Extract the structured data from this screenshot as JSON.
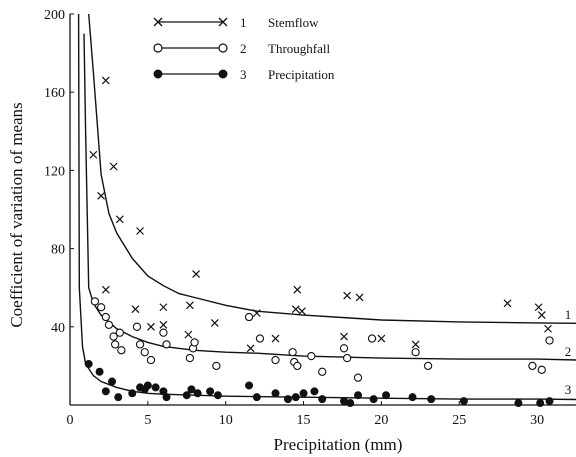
{
  "chart_data": {
    "type": "scatter",
    "title": "",
    "xlabel": "Precipitation (mm)",
    "ylabel": "Coefficient of variation of means",
    "xlim": [
      0,
      32.5
    ],
    "ylim": [
      0,
      200
    ],
    "x_ticks": [
      0,
      5,
      10,
      15,
      20,
      25,
      30
    ],
    "y_ticks": [
      40,
      80,
      120,
      160,
      200
    ],
    "grid": false,
    "legend_position": "top-center",
    "colors": {
      "ink": "#111111",
      "background": "#ffffff"
    },
    "series": [
      {
        "name": "Stemflow",
        "legend_number": "1",
        "curve_label": "1",
        "marker": "x",
        "fitted_curve": [
          [
            1.2,
            200
          ],
          [
            1.5,
            170
          ],
          [
            2.0,
            118
          ],
          [
            2.5,
            98
          ],
          [
            3.0,
            88
          ],
          [
            4.0,
            75
          ],
          [
            5.0,
            66
          ],
          [
            6.0,
            61
          ],
          [
            7.0,
            57
          ],
          [
            8.0,
            55
          ],
          [
            10.0,
            51
          ],
          [
            12.0,
            48
          ],
          [
            15.0,
            46
          ],
          [
            18.0,
            44.5
          ],
          [
            20.0,
            43.5
          ],
          [
            25.0,
            42.5
          ],
          [
            30.0,
            42
          ],
          [
            32.5,
            41.8
          ]
        ],
        "points": [
          [
            1.5,
            128
          ],
          [
            2.0,
            107
          ],
          [
            2.3,
            166
          ],
          [
            2.8,
            122
          ],
          [
            3.2,
            95
          ],
          [
            4.5,
            89
          ],
          [
            8.1,
            67
          ],
          [
            2.3,
            59
          ],
          [
            4.2,
            49
          ],
          [
            5.2,
            40
          ],
          [
            6.0,
            41
          ],
          [
            6.0,
            50
          ],
          [
            7.7,
            51
          ],
          [
            7.6,
            36
          ],
          [
            9.3,
            42
          ],
          [
            11.6,
            29
          ],
          [
            12.0,
            47
          ],
          [
            13.2,
            34
          ],
          [
            14.5,
            49
          ],
          [
            14.6,
            59
          ],
          [
            14.9,
            48
          ],
          [
            17.6,
            35
          ],
          [
            17.8,
            56
          ],
          [
            18.6,
            55
          ],
          [
            20.0,
            34
          ],
          [
            22.2,
            31
          ],
          [
            28.1,
            52
          ],
          [
            30.1,
            50
          ],
          [
            30.3,
            46
          ],
          [
            30.7,
            39
          ]
        ]
      },
      {
        "name": "Throughfall",
        "legend_number": "2",
        "curve_label": "2",
        "marker": "open-circle",
        "fitted_curve": [
          [
            0.9,
            190
          ],
          [
            1.0,
            140
          ],
          [
            1.2,
            60
          ],
          [
            1.5,
            52
          ],
          [
            2.0,
            46
          ],
          [
            3.0,
            39
          ],
          [
            4.0,
            35
          ],
          [
            5.0,
            32
          ],
          [
            6.0,
            30
          ],
          [
            8.0,
            28
          ],
          [
            10.0,
            27
          ],
          [
            12.0,
            26.5
          ],
          [
            15.0,
            25
          ],
          [
            20.0,
            24
          ],
          [
            25.0,
            23.5
          ],
          [
            30.0,
            23.5
          ],
          [
            32.5,
            23
          ]
        ],
        "points": [
          [
            1.6,
            53
          ],
          [
            2.0,
            50
          ],
          [
            2.3,
            45
          ],
          [
            2.5,
            41
          ],
          [
            2.8,
            35
          ],
          [
            2.9,
            31
          ],
          [
            3.2,
            37
          ],
          [
            3.3,
            28
          ],
          [
            4.3,
            40
          ],
          [
            4.5,
            31
          ],
          [
            4.8,
            27
          ],
          [
            5.2,
            23
          ],
          [
            6.0,
            37
          ],
          [
            6.2,
            31
          ],
          [
            7.7,
            24
          ],
          [
            7.9,
            29
          ],
          [
            8.0,
            32
          ],
          [
            9.4,
            20
          ],
          [
            11.5,
            45
          ],
          [
            12.2,
            34
          ],
          [
            13.2,
            23
          ],
          [
            14.3,
            27
          ],
          [
            14.4,
            22
          ],
          [
            14.6,
            20
          ],
          [
            15.5,
            25
          ],
          [
            16.2,
            17
          ],
          [
            17.6,
            29
          ],
          [
            17.8,
            24
          ],
          [
            18.5,
            14
          ],
          [
            19.4,
            34
          ],
          [
            22.2,
            27
          ],
          [
            23.0,
            20
          ],
          [
            29.7,
            20
          ],
          [
            30.3,
            18
          ],
          [
            30.8,
            33
          ]
        ]
      },
      {
        "name": "Precipitation",
        "legend_number": "3",
        "curve_label": "3",
        "marker": "filled-circle",
        "fitted_curve": [
          [
            0.55,
            200
          ],
          [
            0.6,
            60
          ],
          [
            0.8,
            30
          ],
          [
            1.0,
            21
          ],
          [
            1.5,
            15
          ],
          [
            2.0,
            12
          ],
          [
            3.0,
            9
          ],
          [
            4.0,
            7
          ],
          [
            5.0,
            6
          ],
          [
            6.0,
            5.5
          ],
          [
            8.0,
            5
          ],
          [
            10.0,
            4.5
          ],
          [
            15.0,
            4
          ],
          [
            20.0,
            3.5
          ],
          [
            25.0,
            3
          ],
          [
            30.0,
            3
          ],
          [
            32.5,
            2.8
          ]
        ],
        "points": [
          [
            1.2,
            21
          ],
          [
            1.9,
            17
          ],
          [
            2.3,
            7
          ],
          [
            2.7,
            12
          ],
          [
            3.1,
            4
          ],
          [
            4.0,
            6
          ],
          [
            4.5,
            9
          ],
          [
            4.8,
            8
          ],
          [
            5.0,
            10
          ],
          [
            5.5,
            9
          ],
          [
            6.0,
            7
          ],
          [
            6.2,
            4
          ],
          [
            7.5,
            5
          ],
          [
            7.8,
            8
          ],
          [
            8.2,
            6
          ],
          [
            9.0,
            7
          ],
          [
            9.5,
            5
          ],
          [
            11.5,
            10
          ],
          [
            12.0,
            4
          ],
          [
            13.2,
            6
          ],
          [
            14.0,
            3
          ],
          [
            14.5,
            4
          ],
          [
            15.0,
            6
          ],
          [
            15.7,
            7
          ],
          [
            16.2,
            3
          ],
          [
            17.6,
            2
          ],
          [
            18.0,
            1
          ],
          [
            18.5,
            5
          ],
          [
            19.5,
            3
          ],
          [
            20.3,
            5
          ],
          [
            22.0,
            4
          ],
          [
            23.2,
            3
          ],
          [
            25.3,
            2
          ],
          [
            28.8,
            1
          ],
          [
            30.2,
            1
          ],
          [
            30.8,
            2
          ]
        ]
      }
    ]
  }
}
